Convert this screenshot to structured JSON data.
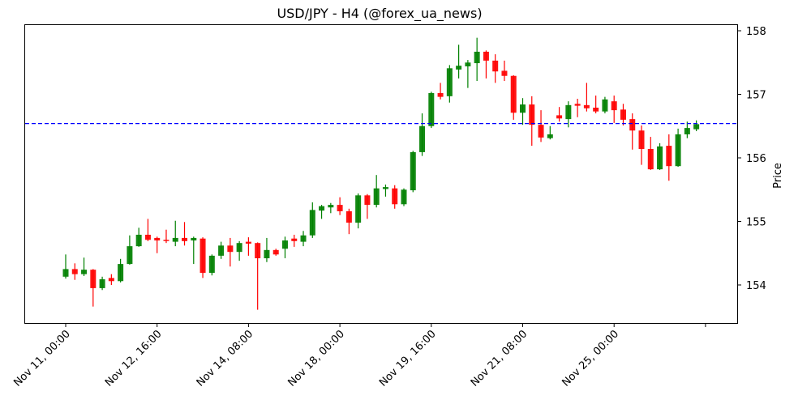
{
  "chart": {
    "title": "USD/JPY - H4 (@forex_ua_news)",
    "ylabel": "Price",
    "up_color": "#008000",
    "down_color": "#ff0000",
    "hline_color": "#0000ff"
  },
  "chart_data": {
    "type": "candlestick",
    "title": "USD/JPY - H4 (@forex_ua_news)",
    "xlabel": "",
    "ylabel": "Price",
    "ylim": [
      153.42,
      158.12
    ],
    "y_ticks": [
      154,
      155,
      156,
      157,
      158
    ],
    "y_axis_position": "right",
    "x_tick_labels": [
      "Nov 11, 00:00",
      "Nov 12, 16:00",
      "Nov 14, 08:00",
      "Nov 18, 00:00",
      "Nov 19, 16:00",
      "Nov 21, 08:00",
      "Nov 25, 00:00",
      ""
    ],
    "x_tick_indices": [
      0,
      10,
      20,
      30,
      40,
      50,
      60,
      70
    ],
    "grid": false,
    "timeframe": "H4",
    "horizontal_line": {
      "value": 156.54,
      "style": "dashed",
      "color": "#0000ff"
    },
    "candles": [
      {
        "o": 154.13,
        "h": 154.48,
        "l": 154.1,
        "c": 154.25
      },
      {
        "o": 154.25,
        "h": 154.34,
        "l": 154.08,
        "c": 154.17
      },
      {
        "o": 154.17,
        "h": 154.43,
        "l": 154.14,
        "c": 154.24
      },
      {
        "o": 154.24,
        "h": 154.25,
        "l": 153.66,
        "c": 153.95
      },
      {
        "o": 153.95,
        "h": 154.13,
        "l": 153.92,
        "c": 154.09
      },
      {
        "o": 154.11,
        "h": 154.17,
        "l": 154.0,
        "c": 154.06
      },
      {
        "o": 154.06,
        "h": 154.41,
        "l": 154.04,
        "c": 154.33
      },
      {
        "o": 154.33,
        "h": 154.78,
        "l": 154.32,
        "c": 154.61
      },
      {
        "o": 154.61,
        "h": 154.9,
        "l": 154.6,
        "c": 154.79
      },
      {
        "o": 154.79,
        "h": 155.04,
        "l": 154.69,
        "c": 154.71
      },
      {
        "o": 154.74,
        "h": 154.76,
        "l": 154.5,
        "c": 154.7
      },
      {
        "o": 154.71,
        "h": 154.87,
        "l": 154.66,
        "c": 154.7
      },
      {
        "o": 154.68,
        "h": 155.01,
        "l": 154.61,
        "c": 154.74
      },
      {
        "o": 154.74,
        "h": 154.99,
        "l": 154.62,
        "c": 154.69
      },
      {
        "o": 154.7,
        "h": 154.76,
        "l": 154.33,
        "c": 154.74
      },
      {
        "o": 154.73,
        "h": 154.75,
        "l": 154.11,
        "c": 154.19
      },
      {
        "o": 154.19,
        "h": 154.48,
        "l": 154.15,
        "c": 154.46
      },
      {
        "o": 154.46,
        "h": 154.68,
        "l": 154.41,
        "c": 154.62
      },
      {
        "o": 154.62,
        "h": 154.74,
        "l": 154.29,
        "c": 154.52
      },
      {
        "o": 154.52,
        "h": 154.69,
        "l": 154.38,
        "c": 154.66
      },
      {
        "o": 154.68,
        "h": 154.75,
        "l": 154.46,
        "c": 154.65
      },
      {
        "o": 154.66,
        "h": 154.67,
        "l": 153.61,
        "c": 154.42
      },
      {
        "o": 154.42,
        "h": 154.74,
        "l": 154.36,
        "c": 154.55
      },
      {
        "o": 154.55,
        "h": 154.57,
        "l": 154.46,
        "c": 154.48
      },
      {
        "o": 154.57,
        "h": 154.76,
        "l": 154.42,
        "c": 154.7
      },
      {
        "o": 154.73,
        "h": 154.79,
        "l": 154.6,
        "c": 154.69
      },
      {
        "o": 154.68,
        "h": 154.85,
        "l": 154.61,
        "c": 154.78
      },
      {
        "o": 154.78,
        "h": 155.3,
        "l": 154.74,
        "c": 155.18
      },
      {
        "o": 155.17,
        "h": 155.26,
        "l": 155.04,
        "c": 155.24
      },
      {
        "o": 155.22,
        "h": 155.29,
        "l": 155.13,
        "c": 155.26
      },
      {
        "o": 155.26,
        "h": 155.38,
        "l": 155.1,
        "c": 155.16
      },
      {
        "o": 155.16,
        "h": 155.2,
        "l": 154.8,
        "c": 154.98
      },
      {
        "o": 154.98,
        "h": 155.44,
        "l": 154.89,
        "c": 155.41
      },
      {
        "o": 155.41,
        "h": 155.43,
        "l": 155.04,
        "c": 155.26
      },
      {
        "o": 155.26,
        "h": 155.73,
        "l": 155.22,
        "c": 155.52
      },
      {
        "o": 155.51,
        "h": 155.58,
        "l": 155.39,
        "c": 155.54
      },
      {
        "o": 155.52,
        "h": 155.57,
        "l": 155.2,
        "c": 155.27
      },
      {
        "o": 155.27,
        "h": 155.52,
        "l": 155.24,
        "c": 155.5
      },
      {
        "o": 155.49,
        "h": 156.11,
        "l": 155.46,
        "c": 156.09
      },
      {
        "o": 156.09,
        "h": 156.7,
        "l": 156.03,
        "c": 156.5
      },
      {
        "o": 156.5,
        "h": 157.04,
        "l": 156.47,
        "c": 157.02
      },
      {
        "o": 157.02,
        "h": 157.18,
        "l": 156.92,
        "c": 156.96
      },
      {
        "o": 156.97,
        "h": 157.46,
        "l": 156.87,
        "c": 157.41
      },
      {
        "o": 157.39,
        "h": 157.78,
        "l": 157.25,
        "c": 157.45
      },
      {
        "o": 157.44,
        "h": 157.54,
        "l": 157.1,
        "c": 157.5
      },
      {
        "o": 157.49,
        "h": 157.89,
        "l": 157.21,
        "c": 157.67
      },
      {
        "o": 157.67,
        "h": 157.69,
        "l": 157.25,
        "c": 157.53
      },
      {
        "o": 157.53,
        "h": 157.63,
        "l": 157.18,
        "c": 157.36
      },
      {
        "o": 157.37,
        "h": 157.53,
        "l": 157.21,
        "c": 157.29
      },
      {
        "o": 157.29,
        "h": 157.3,
        "l": 156.6,
        "c": 156.71
      },
      {
        "o": 156.71,
        "h": 156.94,
        "l": 156.52,
        "c": 156.84
      },
      {
        "o": 156.84,
        "h": 156.97,
        "l": 156.19,
        "c": 156.52
      },
      {
        "o": 156.52,
        "h": 156.75,
        "l": 156.25,
        "c": 156.32
      },
      {
        "o": 156.31,
        "h": 156.5,
        "l": 156.29,
        "c": 156.37
      },
      {
        "o": 156.67,
        "h": 156.8,
        "l": 156.57,
        "c": 156.62
      },
      {
        "o": 156.61,
        "h": 156.89,
        "l": 156.48,
        "c": 156.83
      },
      {
        "o": 156.85,
        "h": 156.93,
        "l": 156.64,
        "c": 156.82
      },
      {
        "o": 156.83,
        "h": 157.18,
        "l": 156.73,
        "c": 156.78
      },
      {
        "o": 156.79,
        "h": 156.98,
        "l": 156.7,
        "c": 156.73
      },
      {
        "o": 156.73,
        "h": 156.96,
        "l": 156.7,
        "c": 156.92
      },
      {
        "o": 156.89,
        "h": 156.98,
        "l": 156.55,
        "c": 156.75
      },
      {
        "o": 156.76,
        "h": 156.85,
        "l": 156.51,
        "c": 156.6
      },
      {
        "o": 156.61,
        "h": 156.7,
        "l": 156.13,
        "c": 156.43
      },
      {
        "o": 156.43,
        "h": 156.51,
        "l": 155.89,
        "c": 156.14
      },
      {
        "o": 156.14,
        "h": 156.33,
        "l": 155.81,
        "c": 155.82
      },
      {
        "o": 155.82,
        "h": 156.23,
        "l": 155.81,
        "c": 156.18
      },
      {
        "o": 156.19,
        "h": 156.37,
        "l": 155.64,
        "c": 155.87
      },
      {
        "o": 155.87,
        "h": 156.46,
        "l": 155.86,
        "c": 156.37
      },
      {
        "o": 156.37,
        "h": 156.57,
        "l": 156.31,
        "c": 156.47
      },
      {
        "o": 156.45,
        "h": 156.59,
        "l": 156.42,
        "c": 156.53
      }
    ]
  }
}
